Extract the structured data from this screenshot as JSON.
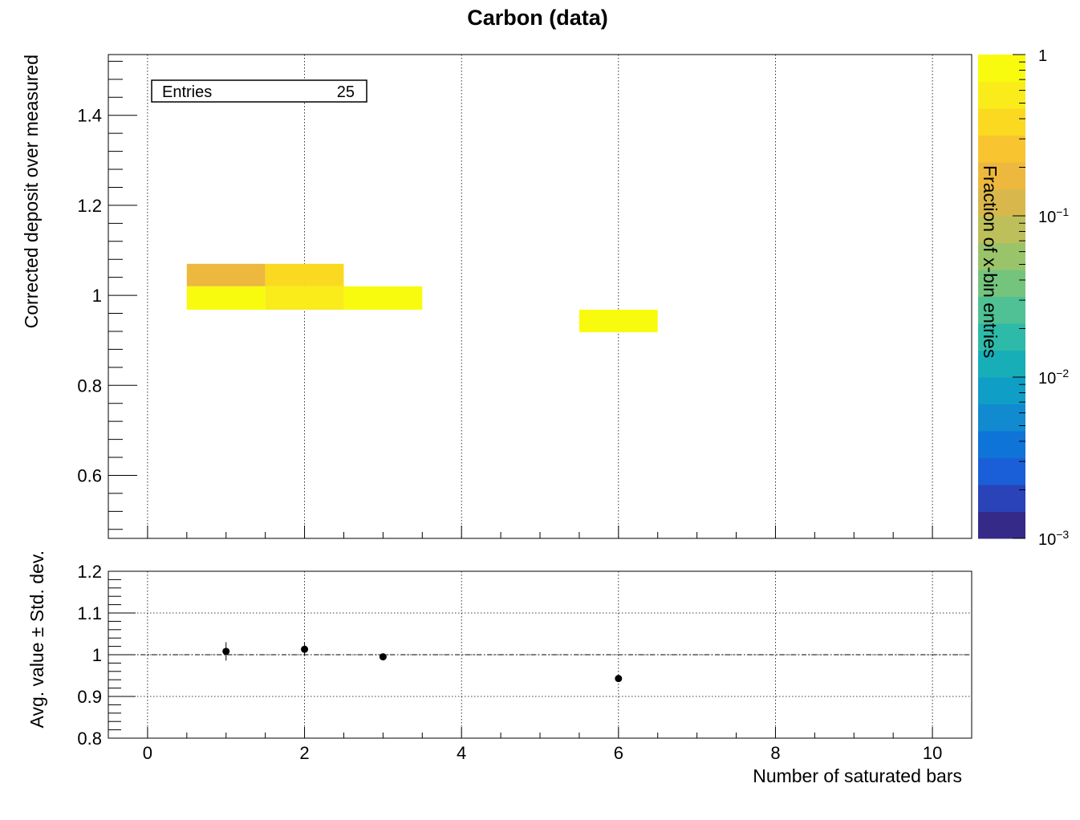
{
  "title": "Carbon (data)",
  "stats_box": {
    "label": "Entries",
    "value": "25"
  },
  "colors": {
    "palette": [
      "#352a87",
      "#2a43b8",
      "#1a5fd7",
      "#0f74d8",
      "#118ad0",
      "#0f9ec5",
      "#17aeb8",
      "#2ebaa8",
      "#4fc194",
      "#75c47e",
      "#9ac46a",
      "#bdbf5a",
      "#d8b84c",
      "#edb83e",
      "#f8c531",
      "#fbd920",
      "#f9ec1a",
      "#f9fb0e"
    ]
  },
  "chart_data": [
    {
      "type": "heatmap",
      "title": "Carbon (data)",
      "xlabel": "",
      "ylabel": "Corrected deposit over measured",
      "zlabel": "Fraction of x-bin entries",
      "xlim": [
        -0.5,
        10.5
      ],
      "ylim": [
        0.46,
        1.535
      ],
      "zlim": [
        0.001,
        1
      ],
      "z_scale": "log",
      "y_ticks": [
        0.6,
        0.8,
        1,
        1.2,
        1.4
      ],
      "y_tick_labels": [
        "0.6",
        "0.8",
        "1",
        "1.2",
        "1.4"
      ],
      "z_tick_labels": [
        {
          "value": 1,
          "label": "1"
        },
        {
          "value": 0.1,
          "label": "10",
          "exp": "−1"
        },
        {
          "value": 0.01,
          "label": "10",
          "exp": "−2"
        },
        {
          "value": 0.001,
          "label": "10",
          "exp": "−3"
        }
      ],
      "bin_width_x": 1,
      "cells": [
        {
          "x": 1,
          "y0": 1.02,
          "y1": 1.07,
          "z": 0.2
        },
        {
          "x": 1,
          "y0": 0.968,
          "y1": 1.02,
          "z": 0.8
        },
        {
          "x": 2,
          "y0": 1.02,
          "y1": 1.07,
          "z": 0.4
        },
        {
          "x": 2,
          "y0": 0.968,
          "y1": 1.02,
          "z": 0.6
        },
        {
          "x": 3,
          "y0": 0.968,
          "y1": 1.02,
          "z": 1
        },
        {
          "x": 6,
          "y0": 0.918,
          "y1": 0.968,
          "z": 1
        }
      ],
      "grid": true
    },
    {
      "type": "scatter",
      "xlabel": "Number of saturated bars",
      "ylabel": "Avg. value ± Std. dev.",
      "xlim": [
        -0.5,
        10.5
      ],
      "ylim": [
        0.8,
        1.2
      ],
      "x_ticks": [
        0,
        2,
        4,
        6,
        8,
        10
      ],
      "x_tick_labels": [
        "0",
        "2",
        "4",
        "6",
        "8",
        "10"
      ],
      "y_ticks": [
        0.8,
        0.9,
        1,
        1.1,
        1.2
      ],
      "y_tick_labels": [
        "0.8",
        "0.9",
        "1",
        "1.1",
        "1.2"
      ],
      "points": [
        {
          "x": 1,
          "y": 1.008,
          "err": 0.022
        },
        {
          "x": 2,
          "y": 1.013,
          "err": 0.016
        },
        {
          "x": 3,
          "y": 0.995,
          "err": 0.003
        },
        {
          "x": 6,
          "y": 0.943,
          "err": 0.003
        }
      ],
      "reference_line": 1,
      "grid": true
    }
  ]
}
